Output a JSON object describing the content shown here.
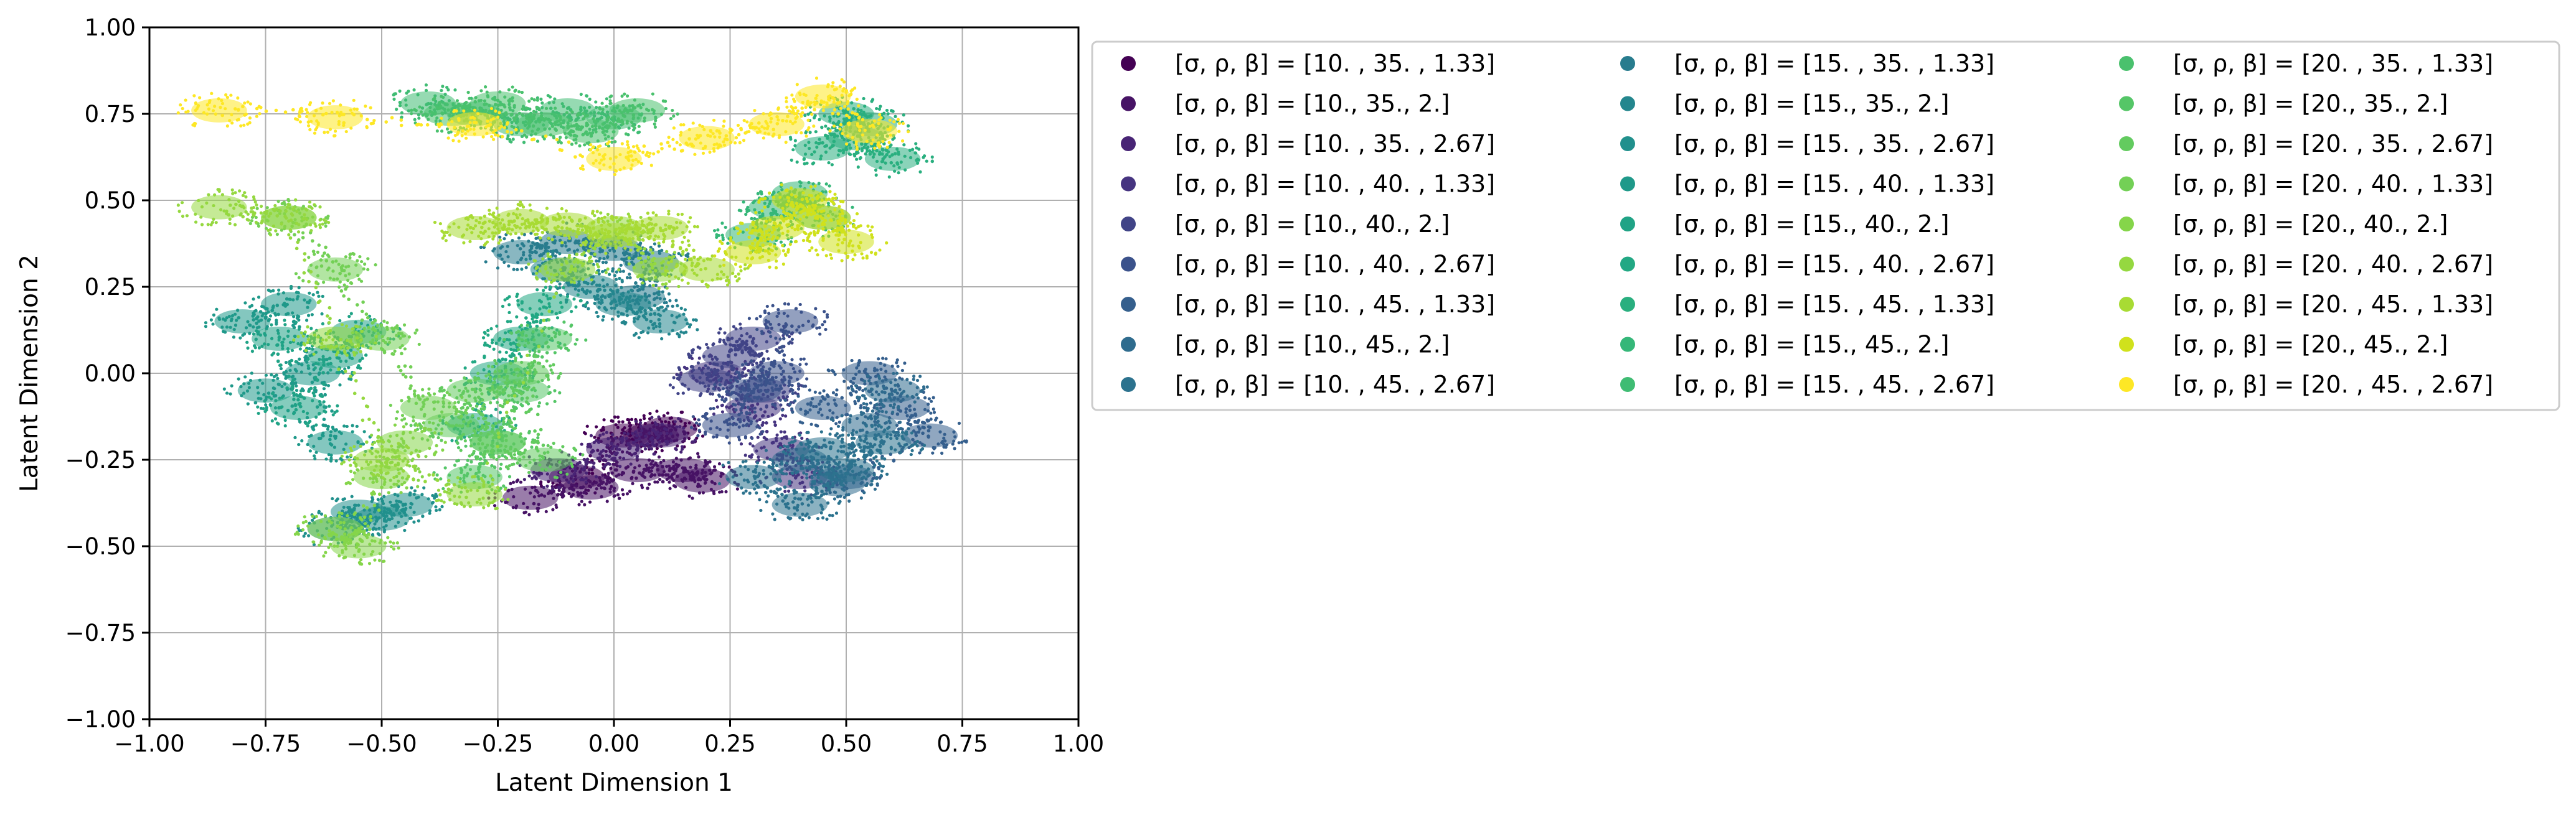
{
  "chart_data": {
    "type": "scatter",
    "title": "",
    "xlabel": "Latent Dimension 1",
    "ylabel": "Latent Dimension 2",
    "xlim": [
      -1.0,
      1.0
    ],
    "ylim": [
      -1.0,
      1.0
    ],
    "xticks": [
      "−1.00",
      "−0.75",
      "−0.50",
      "−0.25",
      "0.00",
      "0.25",
      "0.50",
      "0.75",
      "1.00"
    ],
    "yticks": [
      "−1.00",
      "−0.75",
      "−0.50",
      "−0.25",
      "0.00",
      "0.25",
      "0.50",
      "0.75",
      "1.00"
    ],
    "grid": true,
    "legend_position": "outside-right",
    "series": [
      {
        "name": "[σ, ρ, β] = [10.  , 35.  ,  1.33]",
        "color": "#440154",
        "x": [
          -0.08,
          0.02,
          0.08,
          0.12
        ],
        "y": [
          -0.3,
          -0.18,
          -0.18,
          -0.16
        ]
      },
      {
        "name": "[σ, ρ, β] = [10., 35.,  2.]",
        "color": "#471365",
        "x": [
          -0.18,
          -0.05,
          0.05,
          0.15,
          0.19
        ],
        "y": [
          -0.36,
          -0.33,
          -0.28,
          -0.28,
          -0.31
        ]
      },
      {
        "name": "[σ, ρ, β] = [10.  , 35.  ,  2.67]",
        "color": "#482475",
        "x": [
          -0.12,
          0.0,
          0.1
        ],
        "y": [
          -0.28,
          -0.22,
          -0.18
        ]
      },
      {
        "name": "[σ, ρ, β] = [10.  , 40.  ,  1.33]",
        "color": "#463480",
        "x": [
          0.22,
          0.3,
          0.36,
          0.4
        ],
        "y": [
          0.0,
          -0.1,
          -0.22,
          -0.3
        ]
      },
      {
        "name": "[σ, ρ, β] = [10., 40.,  2.]",
        "color": "#414487",
        "x": [
          0.2,
          0.25,
          0.3,
          0.32
        ],
        "y": [
          -0.02,
          0.05,
          0.1,
          -0.05
        ]
      },
      {
        "name": "[σ, ρ, β] = [10.  , 40.  ,  2.67]",
        "color": "#3b528b",
        "x": [
          0.25,
          0.3,
          0.35,
          0.38
        ],
        "y": [
          -0.15,
          -0.05,
          0.0,
          0.15
        ]
      },
      {
        "name": "[σ, ρ, β] = [10.  , 45.  ,  1.33]",
        "color": "#355f8d",
        "x": [
          0.45,
          0.55,
          0.62,
          0.68,
          0.5
        ],
        "y": [
          -0.1,
          0.0,
          -0.1,
          -0.18,
          -0.3
        ]
      },
      {
        "name": "[σ, ρ, β] = [10., 45.,  2.]",
        "color": "#2f6c8e",
        "x": [
          0.4,
          0.48,
          0.55,
          0.6
        ],
        "y": [
          -0.25,
          -0.32,
          -0.15,
          -0.05
        ]
      },
      {
        "name": "[σ, ρ, β] = [10.  , 45.  ,  2.67]",
        "color": "#2c728e",
        "x": [
          0.3,
          0.4,
          0.5,
          0.58,
          0.45
        ],
        "y": [
          -0.3,
          -0.38,
          -0.28,
          -0.2,
          -0.22
        ]
      },
      {
        "name": "[σ, ρ, β] = [15.  , 35.  ,  1.33]",
        "color": "#287c8e",
        "x": [
          -0.2,
          -0.1,
          0.0,
          0.08,
          0.05
        ],
        "y": [
          0.35,
          0.38,
          0.36,
          0.32,
          0.22
        ]
      },
      {
        "name": "[σ, ρ, β] = [15., 35.,  2.]",
        "color": "#24868e",
        "x": [
          -0.12,
          -0.05,
          0.02,
          0.1
        ],
        "y": [
          0.3,
          0.25,
          0.2,
          0.15
        ]
      },
      {
        "name": "[σ, ρ, β] = [15.  , 35.  ,  2.67]",
        "color": "#21908d",
        "x": [
          -0.55,
          -0.6,
          -0.5,
          -0.45
        ],
        "y": [
          -0.4,
          -0.45,
          -0.42,
          -0.38
        ]
      },
      {
        "name": "[σ, ρ, β] = [15.  , 40.  ,  1.33]",
        "color": "#1f998a",
        "x": [
          -0.8,
          -0.7,
          -0.65,
          -0.6,
          -0.75
        ],
        "y": [
          0.15,
          0.2,
          0.0,
          -0.2,
          -0.05
        ]
      },
      {
        "name": "[σ, ρ, β] = [15., 40.,  2.]",
        "color": "#20a386",
        "x": [
          -0.72,
          -0.68,
          -0.6,
          -0.55
        ],
        "y": [
          0.1,
          -0.1,
          0.05,
          0.12
        ]
      },
      {
        "name": "[σ, ρ, β] = [15.  , 40.  ,  2.67]",
        "color": "#22a884",
        "x": [
          -0.3,
          -0.25,
          -0.2,
          -0.15
        ],
        "y": [
          -0.15,
          0.0,
          0.1,
          0.2
        ]
      },
      {
        "name": "[σ, ρ, β] = [15.  , 45.  ,  1.33]",
        "color": "#29af7f",
        "x": [
          0.45,
          0.5,
          0.55,
          0.6,
          0.52
        ],
        "y": [
          0.65,
          0.75,
          0.72,
          0.62,
          0.68
        ]
      },
      {
        "name": "[σ, ρ, β] = [15., 45.,  2.]",
        "color": "#35b779",
        "x": [
          0.3,
          0.35,
          0.4,
          0.45
        ],
        "y": [
          0.4,
          0.48,
          0.52,
          0.45
        ]
      },
      {
        "name": "[σ, ρ, β] = [15.  , 45.  ,  2.67]",
        "color": "#3fbc73",
        "x": [
          -0.4,
          -0.3,
          -0.2,
          -0.1,
          0.0
        ],
        "y": [
          0.78,
          0.75,
          0.72,
          0.76,
          0.74
        ]
      },
      {
        "name": "[σ, ρ, β] = [20.  , 35.  ,  1.33]",
        "color": "#4ac16d",
        "x": [
          -0.35,
          -0.25,
          -0.15,
          -0.05,
          0.05
        ],
        "y": [
          0.75,
          0.78,
          0.72,
          0.7,
          0.76
        ]
      },
      {
        "name": "[σ, ρ, β] = [20., 35.,  2.]",
        "color": "#55c667",
        "x": [
          -0.3,
          -0.25,
          -0.2,
          -0.15
        ],
        "y": [
          -0.3,
          -0.2,
          -0.05,
          0.1
        ]
      },
      {
        "name": "[σ, ρ, β] = [20.  , 35.  ,  2.67]",
        "color": "#63cb5f",
        "x": [
          -0.35,
          -0.3,
          -0.25,
          -0.2,
          -0.15
        ],
        "y": [
          -0.15,
          -0.05,
          -0.2,
          0.0,
          -0.25
        ]
      },
      {
        "name": "[σ, ρ, β] = [20.  , 40.  ,  1.33]",
        "color": "#73d056",
        "x": [
          -0.7,
          -0.6,
          -0.5,
          -0.4
        ],
        "y": [
          0.45,
          0.3,
          0.1,
          -0.1
        ]
      },
      {
        "name": "[σ, ρ, β] = [20., 40.,  2.]",
        "color": "#85d54a",
        "x": [
          -0.6,
          -0.55,
          -0.5,
          -0.45
        ],
        "y": [
          -0.45,
          -0.5,
          -0.3,
          -0.2
        ]
      },
      {
        "name": "[σ, ρ, β] = [20.  , 40.  ,  2.67]",
        "color": "#95d840",
        "x": [
          -0.85,
          -0.7,
          -0.6,
          -0.5,
          -0.3,
          -0.1,
          0.0,
          0.1
        ],
        "y": [
          0.48,
          0.45,
          0.1,
          -0.25,
          -0.35,
          0.3,
          0.42,
          0.3
        ]
      },
      {
        "name": "[σ, ρ, β] = [20.  , 45.  ,  1.33]",
        "color": "#a8db34",
        "x": [
          -0.3,
          -0.2,
          -0.1,
          0.0,
          0.1,
          0.2
        ],
        "y": [
          0.42,
          0.44,
          0.43,
          0.4,
          0.42,
          0.3
        ]
      },
      {
        "name": "[σ, ρ, β] = [20., 45.,  2.]",
        "color": "#d0e11c",
        "x": [
          0.3,
          0.35,
          0.4,
          0.45,
          0.5
        ],
        "y": [
          0.35,
          0.42,
          0.5,
          0.45,
          0.38
        ]
      },
      {
        "name": "[σ, ρ, β] = [20.  , 45.  ,  2.67]",
        "color": "#fde725",
        "x": [
          -0.85,
          -0.6,
          -0.3,
          0.0,
          0.2,
          0.35,
          0.45,
          0.55
        ],
        "y": [
          0.76,
          0.74,
          0.72,
          0.62,
          0.68,
          0.72,
          0.8,
          0.7
        ]
      }
    ]
  }
}
